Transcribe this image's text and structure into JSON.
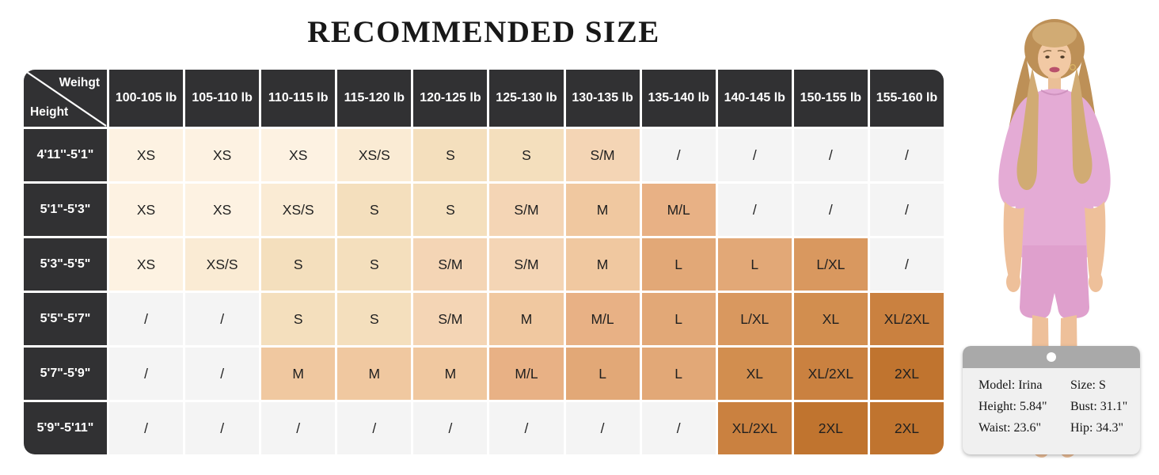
{
  "title": "RECOMMENDED SIZE",
  "chart_data": {
    "type": "table",
    "title": "RECOMMENDED SIZE",
    "corner": {
      "top_label": "Weihgt",
      "bottom_label": "Height"
    },
    "columns": [
      "100-105 lb",
      "105-110 lb",
      "110-115 lb",
      "115-120 lb",
      "120-125 lb",
      "125-130 lb",
      "130-135 lb",
      "135-140 lb",
      "140-145 lb",
      "150-155 lb",
      "155-160 lb"
    ],
    "row_labels": [
      "4'11''-5'1\"",
      "5'1\"-5'3\"",
      "5'3\"-5'5\"",
      "5'5\"-5'7\"",
      "5'7\"-5'9\"",
      "5'9\"-5'11\""
    ],
    "rows": [
      [
        "XS",
        "XS",
        "XS",
        "XS/S",
        "S",
        "S",
        "S/M",
        "/",
        "/",
        "/",
        "/"
      ],
      [
        "XS",
        "XS",
        "XS/S",
        "S",
        "S",
        "S/M",
        "M",
        "M/L",
        "/",
        "/",
        "/"
      ],
      [
        "XS",
        "XS/S",
        "S",
        "S",
        "S/M",
        "S/M",
        "M",
        "L",
        "L",
        "L/XL",
        "/"
      ],
      [
        "/",
        "/",
        "S",
        "S",
        "S/M",
        "M",
        "M/L",
        "L",
        "L/XL",
        "XL",
        "XL/2XL"
      ],
      [
        "/",
        "/",
        "M",
        "M",
        "M",
        "M/L",
        "L",
        "L",
        "XL",
        "XL/2XL",
        "2XL"
      ],
      [
        "/",
        "/",
        "/",
        "/",
        "/",
        "/",
        "/",
        "/",
        "XL/2XL",
        "2XL",
        "2XL"
      ]
    ],
    "legend_position": "none",
    "grid": "white 3px separators, rounded outer corners"
  },
  "style": {
    "header_bg": "#313133",
    "header_text": "#ffffff",
    "cell_text": "#1f1f1f",
    "size_colors": {
      "XS": "#fdf2e2",
      "XS/S": "#faebd4",
      "S": "#f4dfbd",
      "S/M": "#f4d5b5",
      "M": "#f0c8a0",
      "M/L": "#e8b185",
      "L": "#e2a877",
      "L/XL": "#d9985f",
      "XL": "#d28e4f",
      "XL/2XL": "#ca8140",
      "2XL": "#c0742f",
      "/": "#f4f4f4"
    }
  },
  "model_card": {
    "entries": [
      "Model: Irina",
      "Size: S",
      "Height: 5.84\"",
      "Bust: 31.1\"",
      "Waist: 23.6\"",
      "Hip: 34.3\""
    ]
  },
  "model_photo": {
    "outfit_color": "#e4abd5",
    "shorts_color": "#dfa0cd",
    "hair_color": "#bd9057",
    "skin_color": "#eec09a"
  }
}
